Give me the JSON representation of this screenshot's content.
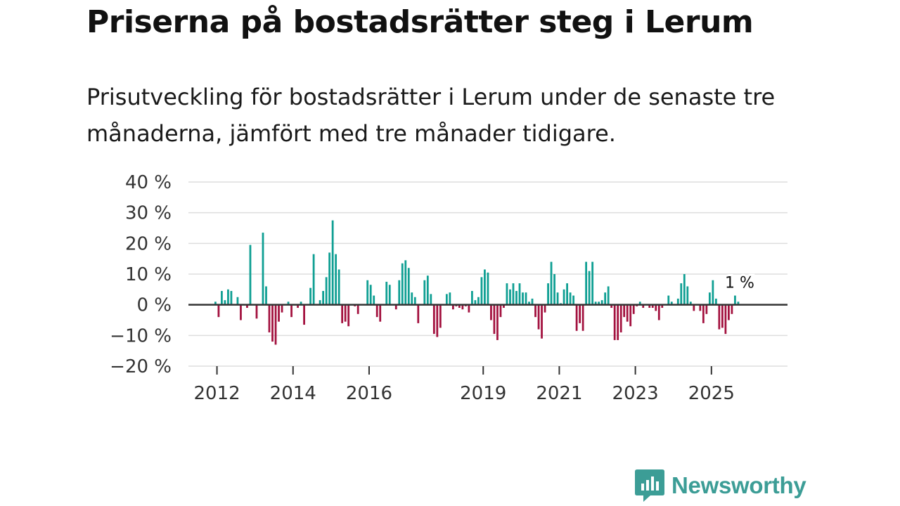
{
  "title": "Priserna på bostadsrätter steg i Lerum",
  "subtitle": "Prisutveckling för bostadsrätter i Lerum under de senaste tre månaderna, jämfört med tre månader tidigare.",
  "brand": {
    "name": "Newsworthy"
  },
  "colors": {
    "positive": "#0f9f93",
    "negative": "#a3123f",
    "grid": "#dddddd",
    "zero": "#333333",
    "axis_text": "#333333",
    "brand": "#3c9d96"
  },
  "chart_data": {
    "type": "bar",
    "title": "Priserna på bostadsrätter steg i Lerum",
    "ylabel": "",
    "xlabel": "",
    "ylim": [
      -20,
      40
    ],
    "yticks": [
      {
        "value": 40,
        "label": "40 %"
      },
      {
        "value": 30,
        "label": "30 %"
      },
      {
        "value": 20,
        "label": "20 %"
      },
      {
        "value": 10,
        "label": "10 %"
      },
      {
        "value": 0,
        "label": "0 %"
      },
      {
        "value": -10,
        "label": "−10 %"
      },
      {
        "value": -20,
        "label": "−20 %"
      }
    ],
    "xlim": [
      2011.25,
      2027.0
    ],
    "xticks": [
      {
        "value": 2012,
        "label": "2012"
      },
      {
        "value": 2014,
        "label": "2014"
      },
      {
        "value": 2016,
        "label": "2016"
      },
      {
        "value": 2019,
        "label": "2019"
      },
      {
        "value": 2021,
        "label": "2021"
      },
      {
        "value": 2023,
        "label": "2023"
      },
      {
        "value": 2025,
        "label": "2025"
      }
    ],
    "start": 2011.96,
    "step": 0.0833,
    "values": [
      1,
      -4,
      4.5,
      1.5,
      5,
      4.5,
      0,
      2.5,
      -5,
      0,
      -1,
      19.5,
      0,
      -4.5,
      0,
      23.5,
      6,
      -9,
      -12,
      -13,
      -5.5,
      -2.5,
      0,
      1,
      -4,
      0,
      -1,
      1,
      -6.5,
      0,
      5.5,
      16.5,
      0,
      1.5,
      4.5,
      9,
      17,
      27.5,
      16.5,
      11.5,
      -6,
      -5.5,
      -7,
      0,
      -0.5,
      -3,
      0,
      0,
      8,
      6.5,
      3,
      -4,
      -5.5,
      0,
      7.5,
      6.5,
      0,
      -1.5,
      8,
      13.5,
      14.5,
      12,
      4,
      2.5,
      -6,
      0,
      8,
      9.5,
      3.5,
      -9.5,
      -10.5,
      -7.5,
      0,
      3.5,
      4,
      -1.5,
      -0.5,
      -1,
      -1.5,
      -0.5,
      -2.5,
      4.5,
      1.5,
      2.5,
      9,
      11.5,
      10.5,
      -5,
      -9.5,
      -11.5,
      -4,
      -1,
      7,
      5,
      7,
      4.5,
      7,
      4,
      4,
      1,
      2,
      -4,
      -8,
      -11,
      -2.5,
      7,
      14,
      10,
      4,
      0.5,
      5,
      7,
      4,
      3,
      -8.5,
      -6,
      -8.5,
      14,
      11,
      14,
      1,
      1,
      1.5,
      4,
      6,
      -1,
      -11.5,
      -11.5,
      -9,
      -4,
      -5.5,
      -7,
      -3,
      -0.5,
      1,
      -1,
      0,
      -1,
      -1,
      -2,
      -5,
      -1,
      0,
      3,
      1,
      0,
      2,
      7,
      10,
      6,
      1,
      -2,
      0,
      -2,
      -6,
      -3,
      4,
      8,
      2,
      -8,
      -7.5,
      -9.5,
      -5,
      -3,
      3,
      1
    ],
    "annotation": {
      "label": "1 %"
    }
  }
}
